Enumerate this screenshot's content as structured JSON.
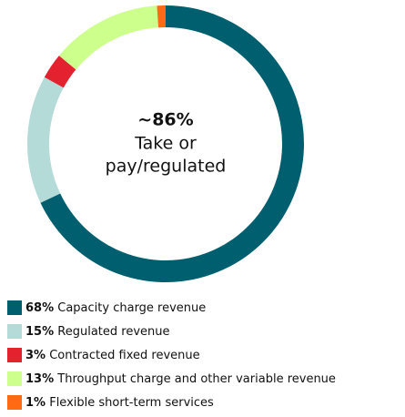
{
  "chart_data": {
    "type": "donut",
    "center_text": {
      "headline": "~86%",
      "lines": [
        "Take or",
        "pay/regulated"
      ]
    },
    "categories": [
      "Capacity charge revenue",
      "Regulated revenue",
      "Contracted fixed revenue",
      "Throughput charge and other variable revenue",
      "Flexible short-term services"
    ],
    "values": [
      68,
      15,
      3,
      13,
      1
    ],
    "value_labels": [
      "68%",
      "15%",
      "3%",
      "13%",
      "1%"
    ],
    "colors": [
      "#005f6e",
      "#b5dbd8",
      "#e3212f",
      "#ccff8c",
      "#ff6a13"
    ],
    "legend": "bottom-left"
  }
}
